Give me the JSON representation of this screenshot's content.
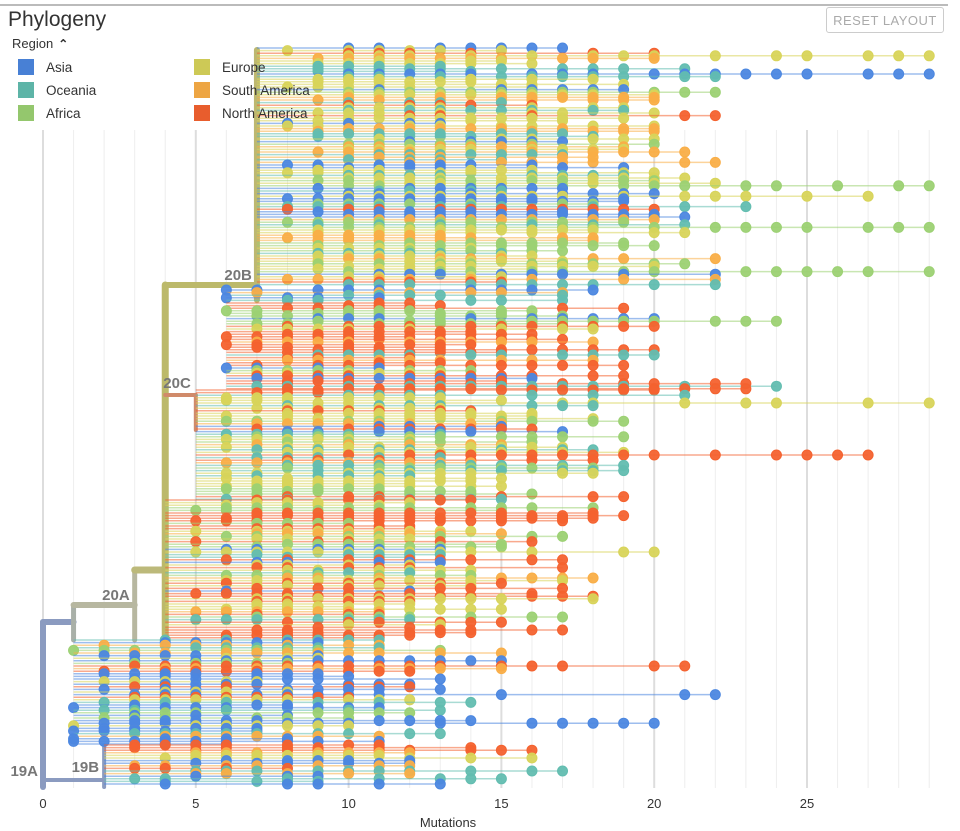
{
  "panel": {
    "title": "Phylogeny",
    "reset_label": "RESET LAYOUT"
  },
  "legend": {
    "title": "Region",
    "items": [
      {
        "label": "Asia",
        "color": "#4C87E0"
      },
      {
        "label": "Oceania",
        "color": "#62BDB0"
      },
      {
        "label": "Africa",
        "color": "#9CD173"
      },
      {
        "label": "Europe",
        "color": "#D8D45A"
      },
      {
        "label": "South America",
        "color": "#F9AE47"
      },
      {
        "label": "North America",
        "color": "#F4622F"
      }
    ]
  },
  "axis": {
    "label": "Mutations",
    "ticks": [
      "0",
      "5",
      "10",
      "15",
      "20",
      "25"
    ],
    "max": 29
  },
  "clades": [
    "19A",
    "19B",
    "20A",
    "20B",
    "20C"
  ]
}
